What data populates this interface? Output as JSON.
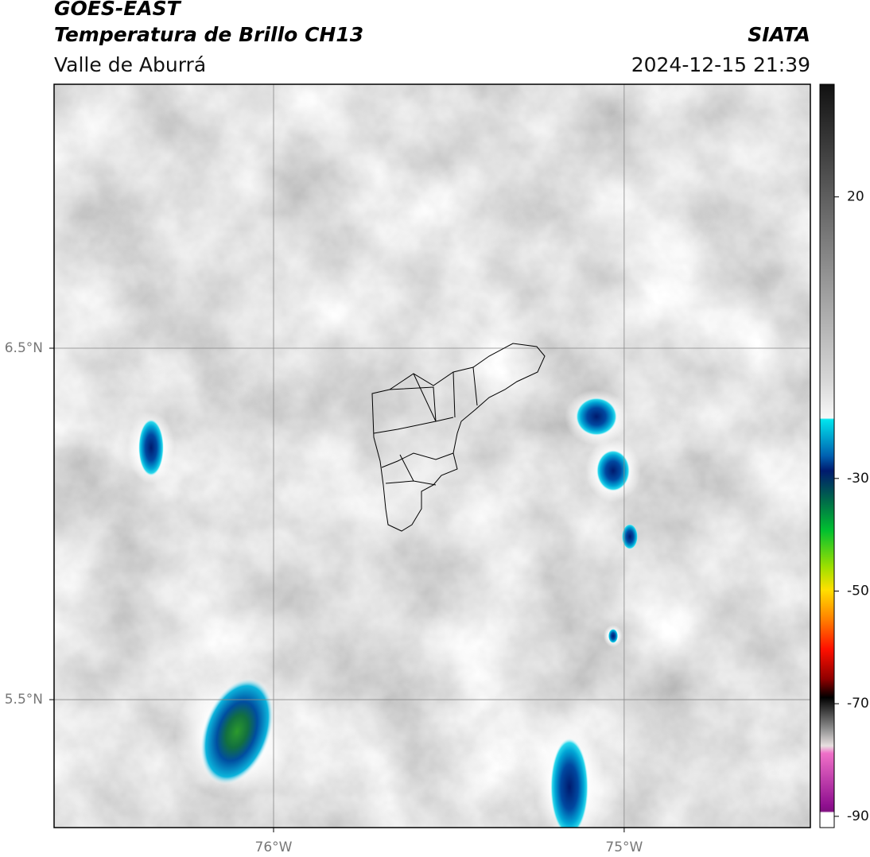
{
  "header": {
    "title": "GOES-EAST",
    "subtitle": "Temperatura de Brillo CH13",
    "region": "Valle de Aburrá",
    "source": "SIATA",
    "timestamp": "2024-12-15 21:39"
  },
  "map": {
    "xlim": [
      -76.626,
      -74.469
    ],
    "ylim": [
      5.136,
      7.251
    ],
    "xticks": [
      {
        "value": -76,
        "label": "76°W"
      },
      {
        "value": -75,
        "label": "75°W"
      }
    ],
    "yticks": [
      {
        "value": 6.5,
        "label": "6.5°N"
      },
      {
        "value": 5.5,
        "label": "5.5°N"
      }
    ],
    "grid": true
  },
  "colorbar": {
    "lim": [
      -92,
      40
    ],
    "ticks": [
      20,
      -30,
      -50,
      -70,
      -90
    ]
  }
}
